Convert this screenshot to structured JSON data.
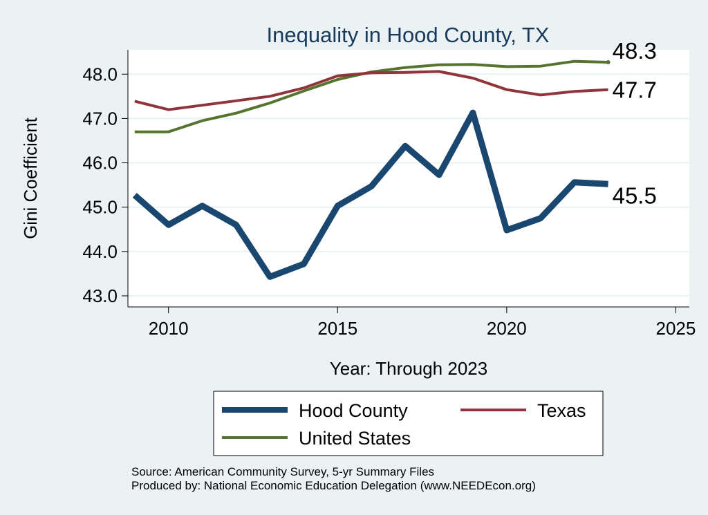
{
  "chart_data": {
    "type": "line",
    "title": "Inequality in Hood County, TX",
    "xlabel": "Year: Through 2023",
    "ylabel": "Gini Coefficient",
    "xlim": [
      2008.8,
      2025.4
    ],
    "ylim": [
      42.75,
      48.55
    ],
    "xticks": [
      2010,
      2015,
      2020,
      2025
    ],
    "yticks": [
      43.0,
      44.0,
      45.0,
      46.0,
      47.0,
      48.0
    ],
    "ytick_labels": [
      "43.0",
      "44.0",
      "45.0",
      "46.0",
      "47.0",
      "48.0"
    ],
    "x": [
      2009,
      2010,
      2011,
      2012,
      2013,
      2014,
      2015,
      2016,
      2017,
      2018,
      2019,
      2020,
      2021,
      2022,
      2023
    ],
    "series": [
      {
        "name": "Hood County",
        "color": "#1a476f",
        "values": [
          45.27,
          44.6,
          45.03,
          44.6,
          43.43,
          43.72,
          45.03,
          45.47,
          46.38,
          45.73,
          47.13,
          44.48,
          44.75,
          45.56,
          45.52
        ],
        "end_label": "45.5"
      },
      {
        "name": "Texas",
        "color": "#90353b",
        "values": [
          47.39,
          47.2,
          47.3,
          47.4,
          47.5,
          47.69,
          47.96,
          48.03,
          48.04,
          48.06,
          47.91,
          47.65,
          47.53,
          47.61,
          47.65
        ],
        "end_label": "47.7"
      },
      {
        "name": "United States",
        "color": "#55752f",
        "values": [
          46.7,
          46.7,
          46.95,
          47.12,
          47.35,
          47.62,
          47.88,
          48.05,
          48.15,
          48.21,
          48.22,
          48.17,
          48.18,
          48.29,
          48.27
        ],
        "end_label": "48.3"
      }
    ],
    "legend": {
      "placement": "bottom",
      "entries": [
        "Hood County",
        "Texas",
        "United States"
      ]
    },
    "grid": true
  },
  "notes": {
    "source": "Source: American Community Survey, 5-yr Summary Files",
    "produced_by": "Produced by: National Economic Education Delegation (www.NEEDEcon.org)"
  },
  "colors": {
    "page_background": "#eaf2f3",
    "plot_background": "#ffffff",
    "title": "#1a3a5c",
    "grid": "#eaf2f3"
  }
}
